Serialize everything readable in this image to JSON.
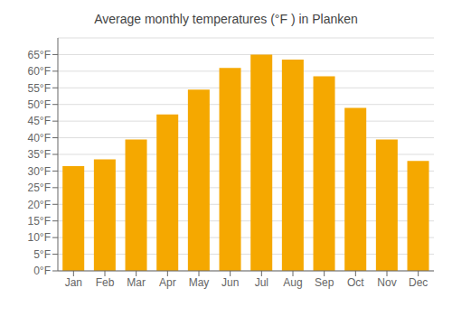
{
  "chart_data": {
    "type": "bar",
    "title": "Average monthly temperatures (°F ) in Planken",
    "categories": [
      "Jan",
      "Feb",
      "Mar",
      "Apr",
      "May",
      "Jun",
      "Jul",
      "Aug",
      "Sep",
      "Oct",
      "Nov",
      "Dec"
    ],
    "values": [
      31.5,
      33.5,
      39.5,
      47.0,
      54.5,
      61.0,
      65.0,
      63.5,
      58.5,
      49.0,
      39.5,
      33.0
    ],
    "color": "#F5A800",
    "ylim": [
      0,
      70
    ],
    "yticks": [
      {
        "value": 0,
        "label": "0°F"
      },
      {
        "value": 5,
        "label": "5°F"
      },
      {
        "value": 10,
        "label": "10°F"
      },
      {
        "value": 15,
        "label": "15°F"
      },
      {
        "value": 20,
        "label": "20°F"
      },
      {
        "value": 25,
        "label": "25°F"
      },
      {
        "value": 30,
        "label": "30°F"
      },
      {
        "value": 35,
        "label": "35°F"
      },
      {
        "value": 40,
        "label": "40°F"
      },
      {
        "value": 45,
        "label": "45°F"
      },
      {
        "value": 50,
        "label": "50°F"
      },
      {
        "value": 55,
        "label": "55°F"
      },
      {
        "value": 60,
        "label": "60°F"
      },
      {
        "value": 65,
        "label": "65°F"
      }
    ],
    "grid": true
  }
}
